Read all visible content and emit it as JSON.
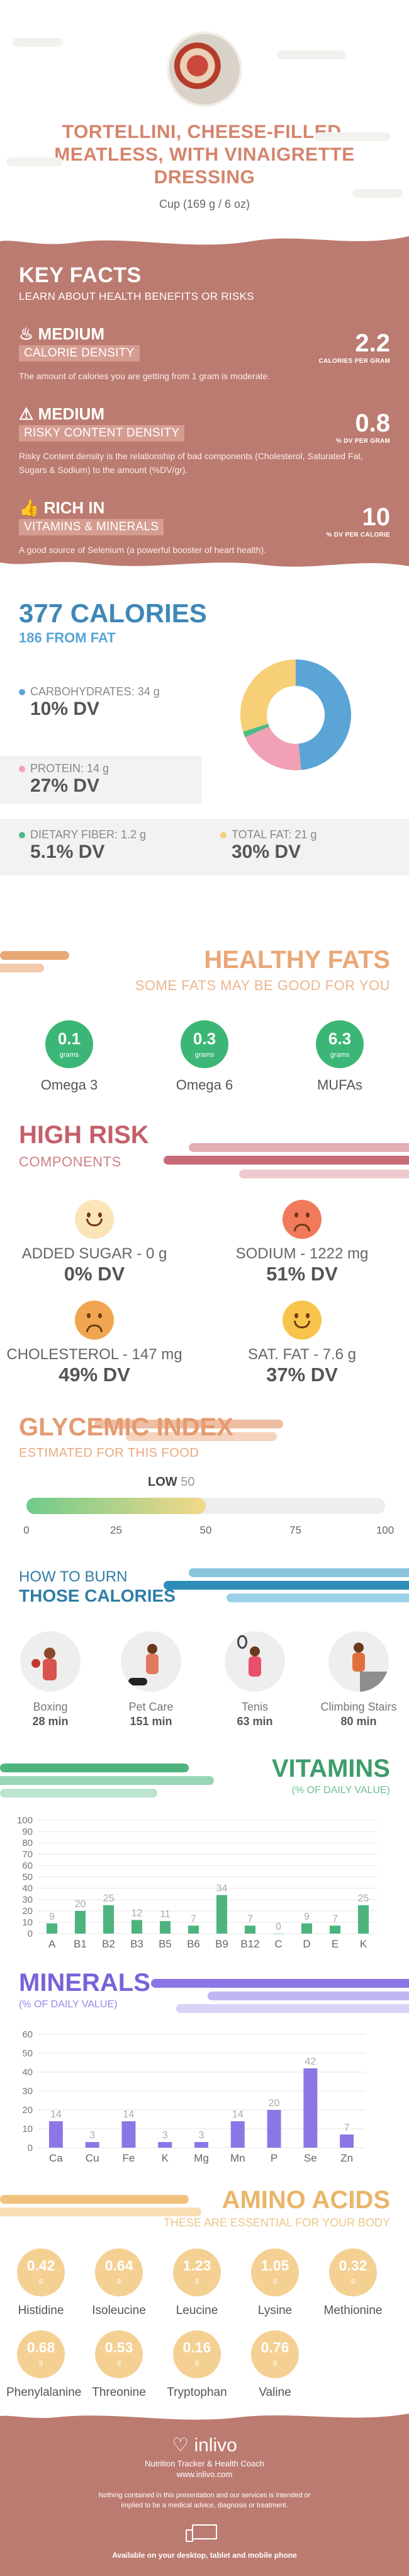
{
  "header": {
    "title": "TORTELLINI, CHEESE-FILLED, MEATLESS, WITH VINAIGRETTE DRESSING",
    "serving": "Cup (169 g / 6 oz)"
  },
  "key_facts": {
    "title": "KEY FACTS",
    "subtitle": "LEARN ABOUT HEALTH BENEFITS OR RISKS",
    "items": [
      {
        "level": "MEDIUM",
        "tag": "CALORIE DENSITY",
        "value": "2.2",
        "unit": "CALORIES PER GRAM",
        "desc": "The amount of calories you are getting from 1 gram is moderate.",
        "icon": "flame-icon"
      },
      {
        "level": "MEDIUM",
        "tag": "RISKY CONTENT DENSITY",
        "value": "0.8",
        "unit": "% DV PER GRAM",
        "desc": "Risky Content density is the relationship of bad components (Cholesterol, Saturated Fat, Sugars & Sodium) to the amount (%DV/gr).",
        "icon": "warning-icon"
      },
      {
        "level": "RICH  IN",
        "tag": "VITAMINS & MINERALS",
        "value": "10",
        "unit": "% DV PER CALORIE",
        "desc": "A good source of Selenium (a powerful booster of heart health).",
        "icon": "thumbs-up-icon"
      }
    ]
  },
  "calories": {
    "title": "377 CALORIES",
    "subtitle": "186 FROM FAT",
    "macros": [
      {
        "name": "CARBOHYDRATES: 34 g",
        "dv": "10% DV",
        "color": "#5aa4d6"
      },
      {
        "name": "PROTEIN: 14 g",
        "dv": "27% DV",
        "color": "#f2a0b5"
      },
      {
        "name": "DIETARY FIBER: 1.2 g",
        "dv": "5.1% DV",
        "color": "#4dbb86"
      },
      {
        "name": "TOTAL FAT: 21 g",
        "dv": "30% DV",
        "color": "#f6cf76"
      }
    ]
  },
  "chart_data": [
    {
      "type": "pie",
      "title": "",
      "labels": [
        "Carbohydrates",
        "Protein",
        "Dietary Fiber",
        "Total Fat"
      ],
      "values": [
        34,
        14,
        1.2,
        21
      ],
      "colors": [
        "#5aa4d6",
        "#f2a0b5",
        "#4dbb86",
        "#f6cf76"
      ]
    },
    {
      "type": "bar",
      "title": "VITAMINS",
      "subtitle": "(% OF DAILY VALUE)",
      "categories": [
        "A",
        "B1",
        "B2",
        "B3",
        "B5",
        "B6",
        "B9",
        "B12",
        "C",
        "D",
        "E",
        "K"
      ],
      "values": [
        9,
        20,
        25,
        12,
        11,
        7,
        34,
        7,
        0,
        9,
        7,
        25
      ],
      "ylim": [
        0,
        100
      ],
      "yticks": [
        0,
        10,
        20,
        30,
        40,
        50,
        60,
        70,
        80,
        90,
        100
      ],
      "color": "#4db47e",
      "grid": true
    },
    {
      "type": "bar",
      "title": "MINERALS",
      "subtitle": "(% OF DAILY VALUE)",
      "categories": [
        "Ca",
        "Cu",
        "Fe",
        "K",
        "Mg",
        "Mn",
        "P",
        "Se",
        "Zn"
      ],
      "values": [
        14,
        3,
        14,
        3,
        3,
        14,
        20,
        42,
        7
      ],
      "ylim": [
        0,
        60
      ],
      "yticks": [
        0,
        10,
        20,
        30,
        40,
        50,
        60
      ],
      "color": "#8c76e5",
      "grid": true
    },
    {
      "type": "bar",
      "title": "GLYCEMIC INDEX",
      "subtitle": "ESTIMATED FOR THIS FOOD",
      "categories": [
        "GI"
      ],
      "values": [
        50
      ],
      "xlim": [
        0,
        100
      ],
      "xticks": [
        0,
        25,
        50,
        75,
        100
      ],
      "label": "LOW"
    }
  ],
  "fats": {
    "title": "HEALTHY FATS",
    "subtitle": "SOME FATS MAY BE GOOD FOR YOU",
    "items": [
      {
        "value": "0.1",
        "unit": "grams",
        "name": "Omega 3"
      },
      {
        "value": "0.3",
        "unit": "grams",
        "name": "Omega 6"
      },
      {
        "value": "6.3",
        "unit": "grams",
        "name": "MUFAs"
      }
    ]
  },
  "risk": {
    "title": "HIGH RISK",
    "subtitle": "COMPONENTS",
    "items": [
      {
        "name": "ADDED SUGAR - 0 g",
        "dv": "0% DV",
        "face": "happy-face-icon",
        "color": "#fbe4b8"
      },
      {
        "name": "SODIUM - 1222 mg",
        "dv": "51% DV",
        "face": "sad-face-icon",
        "color": "#f07a5b"
      },
      {
        "name": "CHOLESTEROL - 147 mg",
        "dv": "49% DV",
        "face": "sad-face-icon",
        "color": "#f0a650"
      },
      {
        "name": "SAT. FAT - 7.6 g",
        "dv": "37% DV",
        "face": "smile-face-icon",
        "color": "#f8c44c"
      }
    ]
  },
  "glycemic": {
    "title": "GLYCEMIC INDEX",
    "subtitle": "ESTIMATED FOR THIS FOOD",
    "level": "LOW",
    "value": "50",
    "ticks": [
      "0",
      "25",
      "50",
      "75",
      "100"
    ]
  },
  "burn": {
    "title1": "HOW TO BURN",
    "title2": "THOSE CALORIES",
    "items": [
      {
        "name": "Boxing",
        "time": "28 min"
      },
      {
        "name": "Pet Care",
        "time": "151 min"
      },
      {
        "name": "Tenis",
        "time": "63 min"
      },
      {
        "name": "Climbing Stairs",
        "time": "80 min"
      }
    ]
  },
  "vitamins": {
    "title": "VITAMINS",
    "subtitle": "(% OF DAILY VALUE)"
  },
  "minerals": {
    "title": "MINERALS",
    "subtitle": "(% OF DAILY VALUE)"
  },
  "amino": {
    "title": "AMINO ACIDS",
    "subtitle": "THESE ARE ESSENTIAL FOR YOUR BODY",
    "items": [
      {
        "value": "0.42",
        "name": "Histidine"
      },
      {
        "value": "0.64",
        "name": "Isoleucine"
      },
      {
        "value": "1.23",
        "name": "Leucine"
      },
      {
        "value": "1.05",
        "name": "Lysine"
      },
      {
        "value": "0.32",
        "name": "Methionine"
      },
      {
        "value": "0.68",
        "name": "Phenylalanine"
      },
      {
        "value": "0.53",
        "name": "Threonine"
      },
      {
        "value": "0.16",
        "name": "Tryptophan"
      },
      {
        "value": "0.76",
        "name": "Valine"
      }
    ],
    "unit": "g"
  },
  "footer": {
    "brand": "inlivo",
    "tagline": "Nutrition Tracker & Health Coach",
    "url": "www.inlivo.com",
    "disclaimer": "Nothing contained in this presentation and our services is intended or implied to be a medical advice, diagnosis or treatment.",
    "available": "Available on your desktop, tablet and mobile phone"
  }
}
